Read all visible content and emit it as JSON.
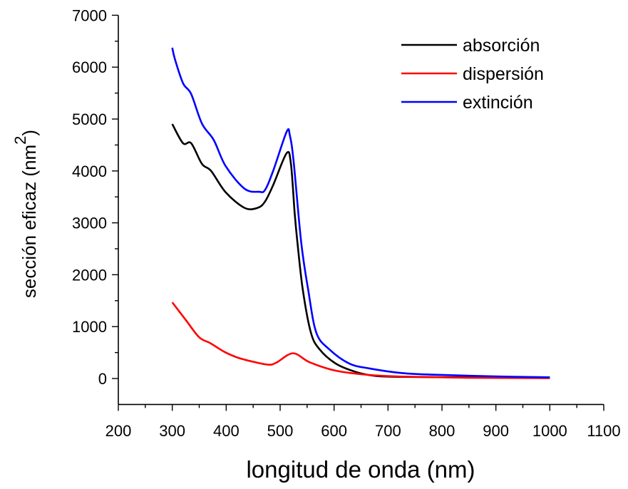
{
  "chart_data": {
    "type": "line",
    "title": "",
    "xlabel": "longitud de onda (nm)",
    "ylabel": "sección eficaz (nm",
    "ylabel_superscript": "2",
    "ylabel_close": ")",
    "xlim": [
      200,
      1100
    ],
    "ylim": [
      -500,
      7000
    ],
    "xticks": [
      200,
      300,
      400,
      500,
      600,
      700,
      800,
      900,
      1000,
      1100
    ],
    "yticks": [
      0,
      1000,
      2000,
      3000,
      4000,
      5000,
      6000,
      7000
    ],
    "grid": false,
    "legend_position": "top-right",
    "series": [
      {
        "name": "absorción",
        "color": "#000000",
        "x": [
          300,
          320,
          335,
          355,
          372,
          399,
          434,
          458,
          472,
          487,
          512,
          520,
          527,
          532,
          542,
          557,
          573,
          603,
          640,
          676,
          725,
          800,
          900,
          1000
        ],
        "y": [
          4904,
          4534,
          4534,
          4137,
          4000,
          3589,
          3288,
          3288,
          3411,
          3726,
          4342,
          4137,
          3178,
          2628,
          1711,
          885,
          564,
          289,
          128,
          50,
          32,
          25,
          18,
          14
        ]
      },
      {
        "name": "dispersión",
        "color": "#ff0000",
        "x": [
          300,
          326,
          350,
          371,
          396,
          421,
          451,
          479,
          494,
          524,
          555,
          603,
          664,
          725,
          847,
          1000
        ],
        "y": [
          1468,
          1115,
          794,
          679,
          518,
          404,
          321,
          266,
          312,
          486,
          312,
          151,
          69,
          37,
          14,
          8
        ]
      },
      {
        "name": "extinción",
        "color": "#0000ff",
        "x": [
          300,
          305,
          320,
          335,
          355,
          377,
          399,
          434,
          461,
          472,
          487,
          512,
          518,
          525,
          539,
          552,
          567,
          591,
          628,
          664,
          725,
          786,
          900,
          1000
        ],
        "y": [
          6374,
          6150,
          5690,
          5484,
          4914,
          4594,
          4092,
          3658,
          3598,
          3634,
          4000,
          4753,
          4685,
          4182,
          2628,
          1711,
          885,
          564,
          289,
          197,
          106,
          73,
          40,
          23
        ]
      }
    ]
  }
}
